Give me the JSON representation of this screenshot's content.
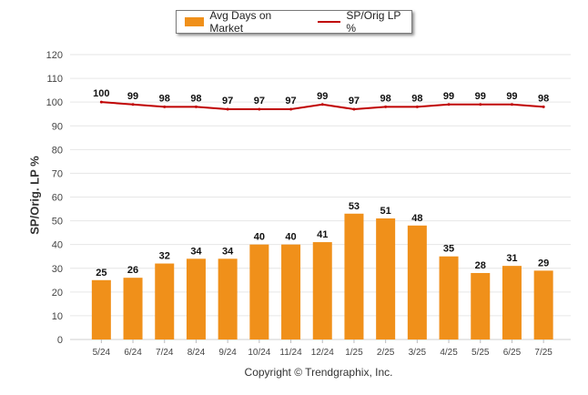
{
  "chart_data": {
    "type": "bar",
    "categories": [
      "5/24",
      "6/24",
      "7/24",
      "8/24",
      "9/24",
      "10/24",
      "11/24",
      "12/24",
      "1/25",
      "2/25",
      "3/25",
      "4/25",
      "5/25",
      "6/25",
      "7/25"
    ],
    "series": [
      {
        "name": "Avg Days on Market",
        "type": "bar",
        "values": [
          25,
          26,
          32,
          34,
          34,
          40,
          40,
          41,
          53,
          51,
          48,
          35,
          28,
          31,
          29
        ]
      },
      {
        "name": "SP/Orig LP %",
        "type": "line",
        "values": [
          100,
          99,
          98,
          98,
          97,
          97,
          97,
          99,
          97,
          98,
          98,
          99,
          99,
          99,
          98
        ]
      }
    ],
    "ylabel": "SP/Orig. LP %",
    "ylim": [
      0,
      120
    ],
    "yticks": [
      0,
      10,
      20,
      30,
      40,
      50,
      60,
      70,
      80,
      90,
      100,
      110,
      120
    ],
    "grid": true,
    "legend_position": "top-center",
    "colors": {
      "bar": "#f0901a",
      "line": "#c00000",
      "grid": "#e6e6e6"
    }
  },
  "footer": {
    "copyright": "Copyright © Trendgraphix, Inc."
  }
}
